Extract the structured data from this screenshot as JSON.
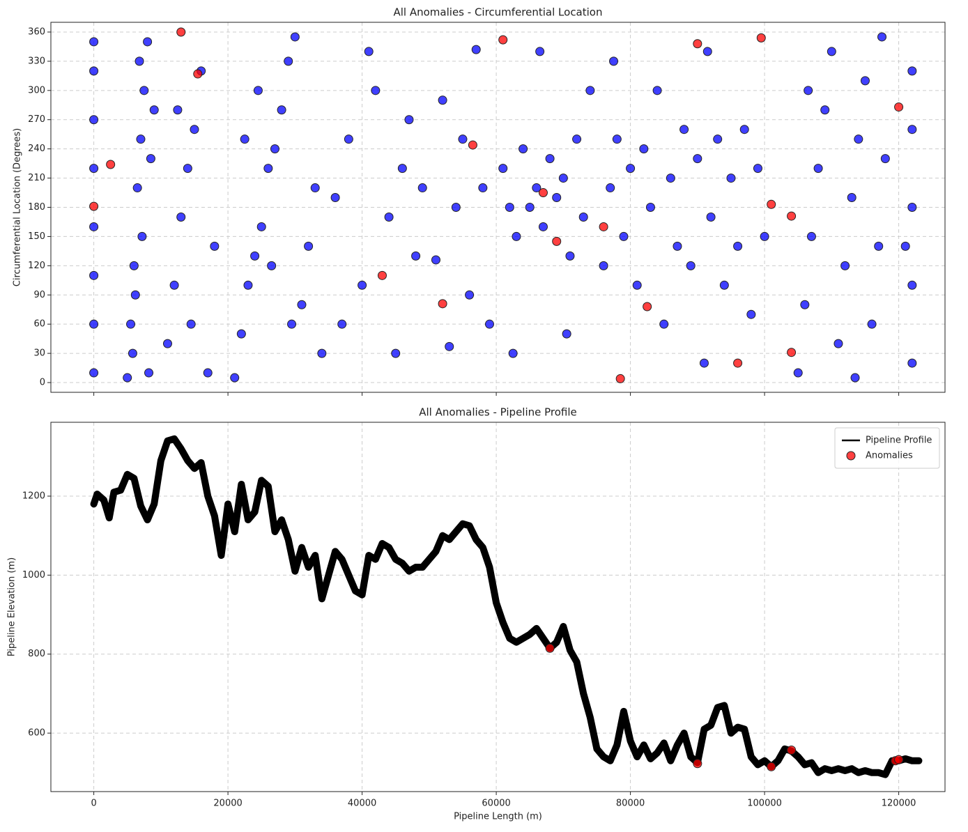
{
  "chart_data": [
    {
      "type": "scatter",
      "title": "All Anomalies - Circumferential Location",
      "ylabel": "Circumferential Location (Degrees)",
      "xlim": [
        -6400,
        126900
      ],
      "ylim": [
        -10,
        370
      ],
      "xticks": [
        0,
        20000,
        40000,
        60000,
        80000,
        100000,
        120000
      ],
      "yticks": [
        0,
        30,
        60,
        90,
        120,
        150,
        180,
        210,
        240,
        270,
        300,
        330,
        360
      ],
      "grid": true,
      "series": [
        {
          "color": "blue",
          "x": [
            0,
            0,
            0,
            0,
            0,
            0,
            0,
            0,
            5000,
            5500,
            6000,
            6500,
            7000,
            7500,
            8000,
            5800,
            6200,
            7200,
            8500,
            9000,
            6800,
            8200,
            11000,
            12000,
            13000,
            14000,
            15000,
            16000,
            17000,
            12500,
            18000,
            14500,
            21000,
            22000,
            23000,
            24000,
            25000,
            26000,
            27000,
            28000,
            29000,
            30000,
            31000,
            32000,
            33000,
            34000,
            22500,
            26500,
            29500,
            24500,
            36000,
            38000,
            40000,
            42000,
            44000,
            46000,
            48000,
            37000,
            41000,
            45000,
            47000,
            49000,
            51000,
            52000,
            54000,
            55000,
            56000,
            58000,
            59000,
            53000,
            57000,
            61000,
            62000,
            63000,
            64000,
            65000,
            66000,
            67000,
            68000,
            69000,
            70000,
            71000,
            72000,
            73000,
            74000,
            62500,
            66500,
            70500,
            76000,
            77000,
            78000,
            79000,
            80000,
            81000,
            82000,
            83000,
            84000,
            85000,
            86000,
            87000,
            88000,
            89000,
            90000,
            91000,
            92000,
            93000,
            94000,
            95000,
            96000,
            97000,
            98000,
            99000,
            100000,
            77500,
            91500,
            105000,
            106000,
            107000,
            108000,
            109000,
            110000,
            111000,
            112000,
            113000,
            114000,
            115000,
            116000,
            117000,
            118000,
            106500,
            113500,
            117500,
            122000,
            122000,
            122000,
            122000,
            122000,
            121000
          ],
          "values": [
            10,
            60,
            110,
            160,
            220,
            270,
            320,
            350,
            5,
            60,
            120,
            200,
            250,
            300,
            350,
            30,
            90,
            150,
            230,
            280,
            330,
            10,
            40,
            100,
            170,
            220,
            260,
            320,
            10,
            280,
            140,
            60,
            5,
            50,
            100,
            130,
            160,
            220,
            240,
            280,
            330,
            355,
            80,
            140,
            200,
            30,
            250,
            120,
            60,
            300,
            190,
            250,
            100,
            300,
            170,
            220,
            130,
            60,
            340,
            30,
            270,
            200,
            126,
            290,
            180,
            250,
            90,
            200,
            60,
            37,
            342,
            220,
            180,
            150,
            240,
            180,
            200,
            160,
            230,
            190,
            210,
            130,
            250,
            170,
            300,
            30,
            340,
            50,
            120,
            200,
            250,
            150,
            220,
            100,
            240,
            180,
            300,
            60,
            210,
            140,
            260,
            120,
            230,
            20,
            170,
            250,
            100,
            210,
            140,
            260,
            70,
            220,
            150,
            330,
            340,
            10,
            80,
            150,
            220,
            280,
            340,
            40,
            120,
            190,
            250,
            310,
            60,
            140,
            230,
            300,
            5,
            355,
            20,
            100,
            180,
            260,
            320,
            140
          ]
        },
        {
          "color": "red",
          "x": [
            0,
            2500,
            13000,
            15500,
            43000,
            52000,
            56500,
            61000,
            67000,
            69000,
            76000,
            78500,
            82500,
            90000,
            99500,
            101000,
            104000,
            104000,
            120000,
            96000
          ],
          "values": [
            181,
            224,
            360,
            317,
            110,
            81,
            244,
            352,
            195,
            145,
            160,
            4,
            78,
            348,
            354,
            183,
            171,
            31,
            283,
            20
          ]
        }
      ]
    },
    {
      "type": "line",
      "title": "All Anomalies - Pipeline Profile",
      "xlabel": "Pipeline Length (m)",
      "ylabel": "Pipeline Elevation (m)",
      "xlim": [
        -6400,
        126900
      ],
      "ylim": [
        452,
        1387
      ],
      "xticks": [
        0,
        20000,
        40000,
        60000,
        80000,
        100000,
        120000
      ],
      "yticks": [
        600,
        800,
        1000,
        1200
      ],
      "grid": true,
      "legend": "upper right",
      "series": [
        {
          "name": "Pipeline Profile",
          "type": "line",
          "color": "black",
          "x": [
            0,
            500,
            1500,
            2300,
            3000,
            4000,
            5000,
            6000,
            7000,
            8000,
            9000,
            10000,
            11000,
            12000,
            13000,
            14000,
            15000,
            16000,
            17000,
            18000,
            19000,
            20000,
            21000,
            22000,
            23000,
            24000,
            25000,
            26000,
            27000,
            28000,
            29000,
            30000,
            31000,
            32000,
            33000,
            34000,
            35000,
            36000,
            37000,
            38000,
            39000,
            40000,
            41000,
            42000,
            43000,
            44000,
            45000,
            46000,
            47000,
            48000,
            49000,
            50000,
            51000,
            52000,
            53000,
            54000,
            55000,
            56000,
            57000,
            58000,
            59000,
            60000,
            61000,
            62000,
            63000,
            64000,
            65000,
            66000,
            67000,
            68000,
            69000,
            70000,
            71000,
            72000,
            73000,
            74000,
            75000,
            76000,
            77000,
            78000,
            79000,
            80000,
            81000,
            82000,
            83000,
            84000,
            85000,
            86000,
            87000,
            88000,
            89000,
            90000,
            91000,
            92000,
            93000,
            94000,
            95000,
            96000,
            97000,
            98000,
            99000,
            100000,
            101000,
            102000,
            103000,
            104000,
            105000,
            106000,
            107000,
            108000,
            109000,
            110000,
            111000,
            112000,
            113000,
            114000,
            115000,
            116000,
            117000,
            118000,
            119000,
            120000,
            121000,
            122000,
            123000
          ],
          "values": [
            1180,
            1205,
            1190,
            1145,
            1210,
            1215,
            1255,
            1245,
            1175,
            1140,
            1180,
            1290,
            1340,
            1345,
            1320,
            1290,
            1270,
            1285,
            1200,
            1150,
            1050,
            1180,
            1110,
            1230,
            1140,
            1160,
            1240,
            1225,
            1110,
            1140,
            1090,
            1010,
            1070,
            1020,
            1050,
            940,
            1000,
            1060,
            1040,
            1000,
            960,
            950,
            1050,
            1040,
            1080,
            1070,
            1040,
            1030,
            1010,
            1020,
            1020,
            1040,
            1060,
            1100,
            1090,
            1110,
            1130,
            1125,
            1090,
            1070,
            1020,
            930,
            880,
            840,
            830,
            840,
            850,
            865,
            840,
            815,
            830,
            870,
            810,
            780,
            700,
            640,
            560,
            540,
            530,
            570,
            655,
            580,
            540,
            570,
            535,
            550,
            575,
            530,
            570,
            600,
            540,
            525,
            610,
            620,
            665,
            670,
            600,
            615,
            610,
            540,
            520,
            530,
            515,
            530,
            560,
            555,
            540,
            520,
            525,
            500,
            510,
            505,
            510,
            505,
            510,
            500,
            505,
            500,
            500,
            495,
            530,
            530,
            535,
            530,
            530
          ]
        },
        {
          "name": "Anomalies",
          "type": "scatter",
          "color": "red",
          "x": [
            68000,
            90000,
            101000,
            104000,
            119500,
            120000
          ],
          "values": [
            815,
            523,
            515,
            557,
            530,
            533
          ]
        }
      ]
    }
  ]
}
